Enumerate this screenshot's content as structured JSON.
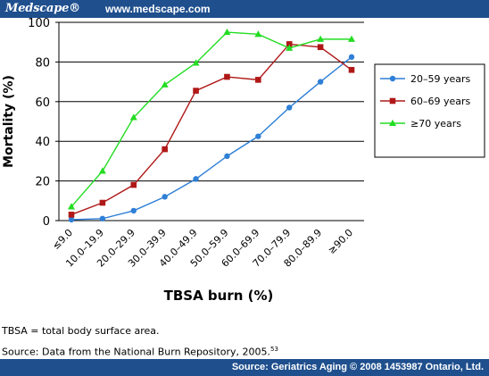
{
  "header": {
    "brand": "Medscape®",
    "url": "www.medscape.com"
  },
  "footer": {
    "source": "Source: Geriatrics Aging © 2008 1453987 Ontario, Ltd."
  },
  "notes": {
    "abbrev": "TBSA = total body surface area.",
    "source": "Source: Data from the National Burn Repository, 2005.",
    "source_ref": "53"
  },
  "chart_data": {
    "type": "line",
    "xlabel": "TBSA burn (%)",
    "ylabel": "Mortality (%)",
    "ylim": [
      0,
      100
    ],
    "yticks": [
      0,
      20,
      40,
      60,
      80,
      100
    ],
    "grid": "horizontal",
    "legend_position": "right",
    "categories": [
      "≤9.0",
      "10.0–19.9",
      "20.0–29.9",
      "30.0–39.9",
      "40.0–49.9",
      "50.0–59.9",
      "60.0–69.9",
      "70.0–79.9",
      "80.0–89.9",
      "≥90.0"
    ],
    "series": [
      {
        "name": "20–59 years",
        "color": "#2e7fd6",
        "marker": "circle",
        "values": [
          0.5,
          1,
          5,
          12,
          21,
          32.5,
          42.5,
          57,
          70,
          82.5
        ]
      },
      {
        "name": "60–69 years",
        "color": "#b01818",
        "marker": "square",
        "values": [
          3,
          9,
          18,
          36,
          65.5,
          72.5,
          71,
          89,
          87.5,
          76
        ]
      },
      {
        "name": "≥70 years",
        "color": "#22dd22",
        "marker": "triangle",
        "values": [
          7,
          25,
          52,
          68.5,
          79.5,
          95,
          94,
          87,
          91.5,
          91.5
        ]
      }
    ]
  }
}
